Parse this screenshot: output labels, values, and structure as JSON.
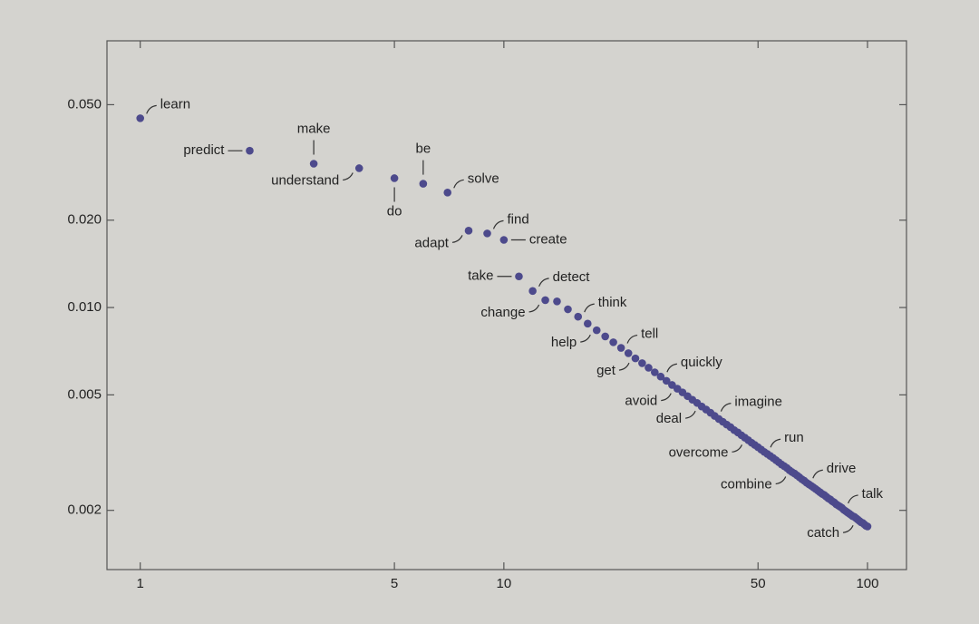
{
  "chart_data": {
    "type": "scatter",
    "log_x": true,
    "log_y": true,
    "color": "#4d4a8c",
    "xlim": [
      0.81,
      128
    ],
    "ylim": [
      0.00125,
      0.083
    ],
    "xticks": [
      1,
      5,
      10,
      50,
      100
    ],
    "yticks": [
      {
        "value": 0.05,
        "label": "0.050"
      },
      {
        "value": 0.02,
        "label": "0.020"
      },
      {
        "value": 0.01,
        "label": "0.010"
      },
      0.005,
      0.002
    ],
    "x": [
      1,
      2,
      3,
      4,
      5,
      6,
      7,
      8,
      9,
      10,
      11,
      12,
      13,
      14,
      15,
      16,
      17,
      18,
      19,
      20,
      21,
      22,
      23,
      24,
      25,
      26,
      27,
      28,
      29,
      30,
      31,
      32,
      33,
      34,
      35,
      36,
      37,
      38,
      39,
      40,
      41,
      42,
      43,
      44,
      45,
      46,
      47,
      48,
      49,
      50,
      51,
      52,
      53,
      54,
      55,
      56,
      57,
      58,
      59,
      60,
      61,
      62,
      63,
      64,
      65,
      66,
      67,
      68,
      69,
      70,
      71,
      72,
      73,
      74,
      75,
      76,
      77,
      78,
      79,
      80,
      81,
      82,
      83,
      84,
      85,
      86,
      87,
      88,
      89,
      90,
      91,
      92,
      93,
      94,
      95,
      96,
      97,
      98,
      99,
      100
    ],
    "values": [
      0.0449,
      0.0347,
      0.0313,
      0.0302,
      0.0279,
      0.0267,
      0.0249,
      0.0184,
      0.018,
      0.0171,
      0.0128,
      0.0114,
      0.0106,
      0.0105,
      0.00986,
      0.0093,
      0.0088,
      0.00835,
      0.00795,
      0.00759,
      0.00726,
      0.00696,
      0.00668,
      0.00643,
      0.0062,
      0.00598,
      0.00578,
      0.00559,
      0.00541,
      0.00525,
      0.0051,
      0.00495,
      0.00481,
      0.00469,
      0.00456,
      0.00445,
      0.00434,
      0.00423,
      0.00413,
      0.00404,
      0.00395,
      0.00387,
      0.00378,
      0.00371,
      0.00363,
      0.00356,
      0.00349,
      0.00342,
      0.00336,
      0.0033,
      0.00324,
      0.00318,
      0.00313,
      0.00308,
      0.00303,
      0.00298,
      0.00293,
      0.00288,
      0.00284,
      0.0028,
      0.00275,
      0.00271,
      0.00268,
      0.00264,
      0.0026,
      0.00256,
      0.00253,
      0.00249,
      0.00246,
      0.00243,
      0.0024,
      0.00237,
      0.00234,
      0.00231,
      0.00228,
      0.00226,
      0.00223,
      0.0022,
      0.00218,
      0.00215,
      0.00213,
      0.0021,
      0.00208,
      0.00206,
      0.00204,
      0.00201,
      0.00199,
      0.00197,
      0.00195,
      0.00193,
      0.00191,
      0.0019,
      0.00188,
      0.00186,
      0.00184,
      0.00182,
      0.00181,
      0.00179,
      0.00177,
      0.00176
    ],
    "point_labels": [
      "learn",
      "predict",
      "make",
      "understand",
      "do",
      "be",
      "solve",
      "adapt",
      "find",
      "create",
      "take",
      "detect",
      "change",
      null,
      null,
      "think",
      null,
      "help",
      null,
      null,
      "tell",
      null,
      "get",
      null,
      null,
      null,
      "quickly",
      null,
      null,
      "avoid",
      null,
      null,
      null,
      null,
      "deal",
      null,
      null,
      "imagine",
      null,
      null,
      null,
      null,
      null,
      null,
      null,
      null,
      "overcome",
      null,
      null,
      null,
      null,
      "run",
      null,
      null,
      null,
      null,
      null,
      null,
      null,
      null,
      null,
      "combine",
      null,
      null,
      null,
      null,
      null,
      "drive",
      null,
      null,
      null,
      null,
      null,
      null,
      null,
      null,
      null,
      null,
      null,
      null,
      null,
      null,
      null,
      null,
      "talk",
      null,
      null,
      null,
      null,
      null,
      null,
      null,
      null,
      null,
      "catch",
      null,
      null,
      null,
      null,
      null
    ]
  }
}
